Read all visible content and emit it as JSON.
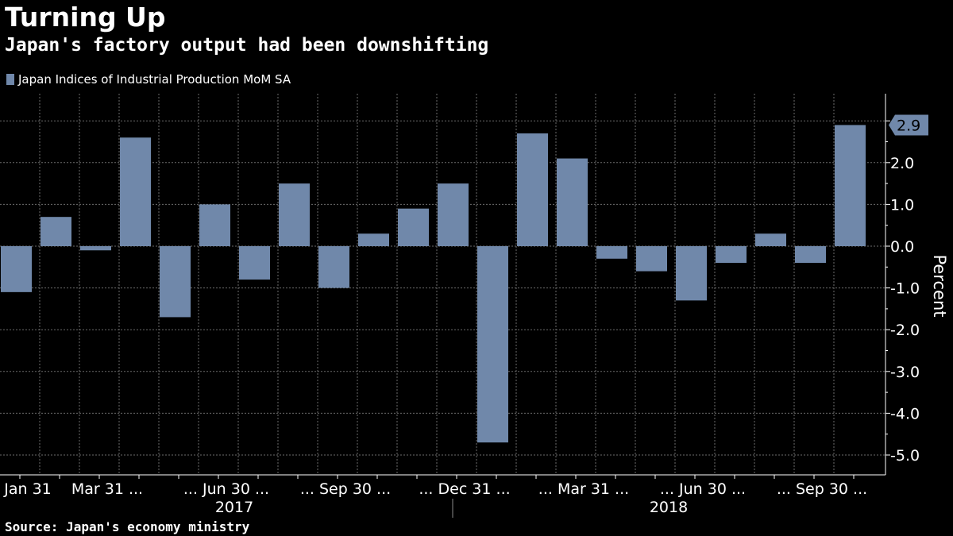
{
  "title": "Turning Up",
  "subtitle": "Japan's factory output had been downshifting",
  "source": "Source: Japan's economy ministry",
  "colors": {
    "background": "#000000",
    "bar": "#7088aa",
    "grid": "#6b6b6b",
    "text": "#ffffff"
  },
  "chart_data": {
    "type": "bar",
    "categories": [
      "Jan 2017",
      "Feb 2017",
      "Mar 2017",
      "Apr 2017",
      "May 2017",
      "Jun 2017",
      "Jul 2017",
      "Aug 2017",
      "Sep 2017",
      "Oct 2017",
      "Nov 2017",
      "Dec 2017",
      "Jan 2018",
      "Feb 2018",
      "Mar 2018",
      "Apr 2018",
      "May 2018",
      "Jun 2018",
      "Jul 2018",
      "Aug 2018",
      "Sep 2018",
      "Oct 2018"
    ],
    "series": [
      {
        "name": "Japan Indices of Industrial Production MoM SA",
        "values": [
          -1.1,
          0.7,
          -0.1,
          2.6,
          -1.7,
          1.0,
          -0.8,
          1.5,
          -1.0,
          0.3,
          0.9,
          1.5,
          -4.7,
          2.7,
          2.1,
          -0.3,
          -0.6,
          -1.3,
          -0.4,
          0.3,
          -0.4,
          2.9
        ]
      }
    ],
    "xtick_labels": [
      "Jan 31",
      "Mar 31 ...",
      "... Jun 30 ...",
      "... Sep 30 ...",
      "... Dec 31 ...",
      "... Mar 31 ...",
      "... Jun 30 ...",
      "... Sep 30 ..."
    ],
    "year_labels": [
      "2017",
      "2018"
    ],
    "ylabel": "Percent",
    "ylim": [
      -5.5,
      3.6
    ],
    "yticks": [
      -5.0,
      -4.0,
      -3.0,
      -2.0,
      -1.0,
      0.0,
      1.0,
      2.0,
      3.0
    ],
    "ytick_labels": [
      "-5.0",
      "-4.0",
      "-3.0",
      "-2.0",
      "-1.0",
      "0.0",
      "1.0",
      "2.0",
      ""
    ],
    "last_value_label": "2.9",
    "grid": true,
    "legend_position": "top-left"
  }
}
